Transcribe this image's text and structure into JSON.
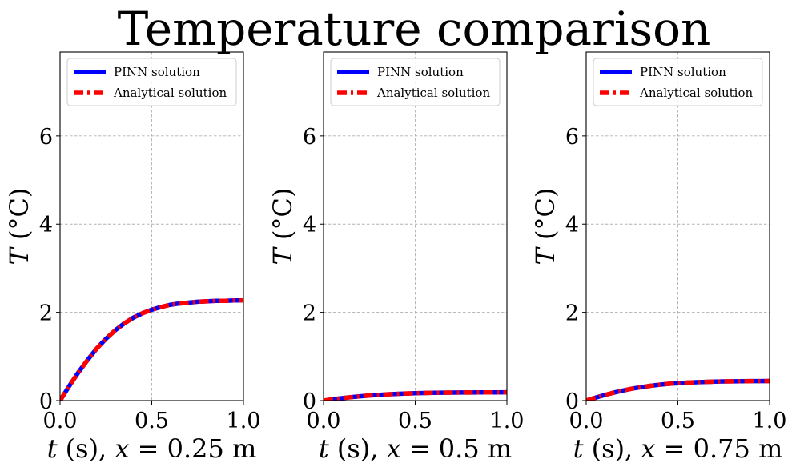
{
  "figure": {
    "title": "Temperature comparison"
  },
  "colors": {
    "pinn": "#0000ff",
    "analytical": "#ff0000",
    "grid": "#b0b0b0"
  },
  "chart_data": [
    {
      "type": "line",
      "xlabel_italic": "t",
      "xlabel_rest": " (s), ",
      "xlabel_var": "x",
      "xlabel_value": " = 0.25 m",
      "ylabel_italic": "T",
      "ylabel_rest": " (°C)",
      "xlim": [
        0,
        1
      ],
      "ylim": [
        0,
        7.9
      ],
      "xticks": [
        0.0,
        0.5,
        1.0
      ],
      "xtick_labels": [
        "0.0",
        "0.5",
        "1.0"
      ],
      "yticks": [
        0,
        2,
        4,
        6
      ],
      "ytick_labels": [
        "0",
        "2",
        "4",
        "6"
      ],
      "grid": true,
      "legend": "top-left",
      "x": [
        0.0,
        0.05,
        0.1,
        0.15,
        0.2,
        0.25,
        0.3,
        0.35,
        0.4,
        0.45,
        0.5,
        0.55,
        0.6,
        0.65,
        0.7,
        0.75,
        0.8,
        0.85,
        0.9,
        0.95,
        1.0
      ],
      "series": [
        {
          "name": "PINN solution",
          "style": "solid",
          "values": [
            0.0,
            0.33,
            0.64,
            0.92,
            1.18,
            1.4,
            1.59,
            1.75,
            1.88,
            1.98,
            2.06,
            2.12,
            2.17,
            2.2,
            2.22,
            2.24,
            2.25,
            2.26,
            2.26,
            2.27,
            2.27
          ]
        },
        {
          "name": "Analytical solution",
          "style": "dashdot",
          "values": [
            0.0,
            0.33,
            0.64,
            0.92,
            1.18,
            1.4,
            1.59,
            1.75,
            1.88,
            1.98,
            2.06,
            2.12,
            2.17,
            2.2,
            2.22,
            2.24,
            2.25,
            2.26,
            2.26,
            2.27,
            2.27
          ]
        }
      ]
    },
    {
      "type": "line",
      "xlabel_italic": "t",
      "xlabel_rest": " (s), ",
      "xlabel_var": "x",
      "xlabel_value": " = 0.5 m",
      "ylabel_italic": "T",
      "ylabel_rest": " (°C)",
      "xlim": [
        0,
        1
      ],
      "ylim": [
        0,
        7.9
      ],
      "xticks": [
        0.0,
        0.5,
        1.0
      ],
      "xtick_labels": [
        "0.0",
        "0.5",
        "1.0"
      ],
      "yticks": [
        0,
        2,
        4,
        6
      ],
      "ytick_labels": [
        "0",
        "2",
        "4",
        "6"
      ],
      "grid": true,
      "legend": "top-left",
      "x": [
        0.0,
        0.05,
        0.1,
        0.15,
        0.2,
        0.25,
        0.3,
        0.35,
        0.4,
        0.45,
        0.5,
        0.55,
        0.6,
        0.65,
        0.7,
        0.75,
        0.8,
        0.85,
        0.9,
        0.95,
        1.0
      ],
      "series": [
        {
          "name": "PINN solution",
          "style": "solid",
          "values": [
            0.0,
            0.03,
            0.055,
            0.078,
            0.098,
            0.115,
            0.13,
            0.142,
            0.152,
            0.16,
            0.167,
            0.172,
            0.176,
            0.179,
            0.181,
            0.183,
            0.184,
            0.185,
            0.186,
            0.186,
            0.187
          ]
        },
        {
          "name": "Analytical solution",
          "style": "dashdot",
          "values": [
            0.0,
            0.03,
            0.055,
            0.078,
            0.098,
            0.115,
            0.13,
            0.142,
            0.152,
            0.16,
            0.167,
            0.172,
            0.176,
            0.179,
            0.181,
            0.183,
            0.184,
            0.185,
            0.186,
            0.186,
            0.187
          ]
        }
      ]
    },
    {
      "type": "line",
      "xlabel_italic": "t",
      "xlabel_rest": " (s), ",
      "xlabel_var": "x",
      "xlabel_value": " = 0.75 m",
      "ylabel_italic": "T",
      "ylabel_rest": " (°C)",
      "xlim": [
        0,
        1
      ],
      "ylim": [
        0,
        7.9
      ],
      "xticks": [
        0.0,
        0.5,
        1.0
      ],
      "xtick_labels": [
        "0.0",
        "0.5",
        "1.0"
      ],
      "yticks": [
        0,
        2,
        4,
        6
      ],
      "ytick_labels": [
        "0",
        "2",
        "4",
        "6"
      ],
      "grid": true,
      "legend": "top-left",
      "x": [
        0.0,
        0.05,
        0.1,
        0.15,
        0.2,
        0.25,
        0.3,
        0.35,
        0.4,
        0.45,
        0.5,
        0.55,
        0.6,
        0.65,
        0.7,
        0.75,
        0.8,
        0.85,
        0.9,
        0.95,
        1.0
      ],
      "series": [
        {
          "name": "PINN solution",
          "style": "solid",
          "values": [
            0.0,
            0.065,
            0.125,
            0.18,
            0.228,
            0.27,
            0.305,
            0.335,
            0.36,
            0.38,
            0.395,
            0.407,
            0.417,
            0.424,
            0.43,
            0.434,
            0.437,
            0.439,
            0.441,
            0.442,
            0.443
          ]
        },
        {
          "name": "Analytical solution",
          "style": "dashdot",
          "values": [
            0.0,
            0.065,
            0.125,
            0.18,
            0.228,
            0.27,
            0.305,
            0.335,
            0.36,
            0.38,
            0.395,
            0.407,
            0.417,
            0.424,
            0.43,
            0.434,
            0.437,
            0.439,
            0.441,
            0.442,
            0.443
          ]
        }
      ]
    }
  ]
}
